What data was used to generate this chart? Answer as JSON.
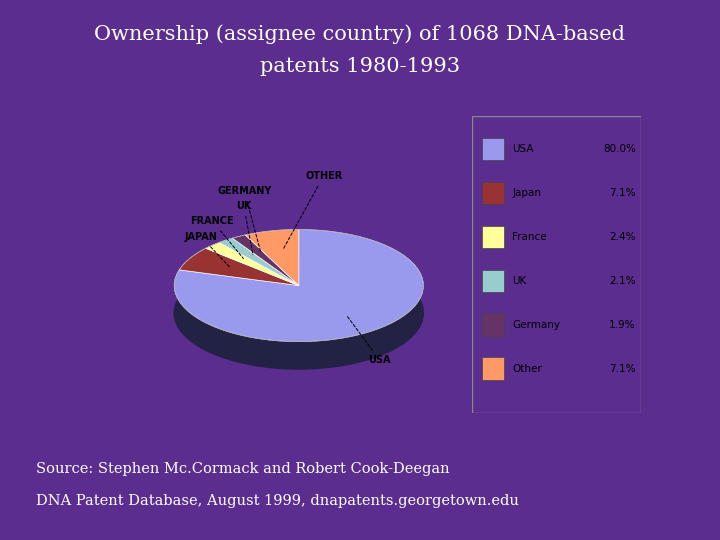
{
  "title_line1": "Ownership (assignee country) of 1068 DNA-based",
  "title_line2": "patents 1980-1993",
  "source_line1": "Source: Stephen Mc.Cormack and Robert Cook-Deegan",
  "source_line2": "DNA Patent Database, August 1999, dnapatents.georgetown.edu",
  "bg_color": "#5b2d8e",
  "chart_bg": "#d8d8d8",
  "title_color": "white",
  "source_color": "white",
  "labels": [
    "USA",
    "Japan",
    "France",
    "UK",
    "Germany",
    "Other"
  ],
  "sizes": [
    80.0,
    7.1,
    2.4,
    2.1,
    1.9,
    7.1
  ],
  "colors": [
    "#9999ee",
    "#993333",
    "#ffff99",
    "#99cccc",
    "#663366",
    "#ff9966"
  ],
  "shadow_colors": [
    "#555599",
    "#551111",
    "#999955",
    "#557777",
    "#331133",
    "#995544"
  ],
  "legend_labels": [
    "USA",
    "Japan",
    "France",
    "UK",
    "Germany",
    "Other"
  ],
  "legend_values": [
    "80.0%",
    "7.1%",
    "2.4%",
    "2.1%",
    "1.9%",
    "7.1%"
  ],
  "pie_startangle": 90
}
